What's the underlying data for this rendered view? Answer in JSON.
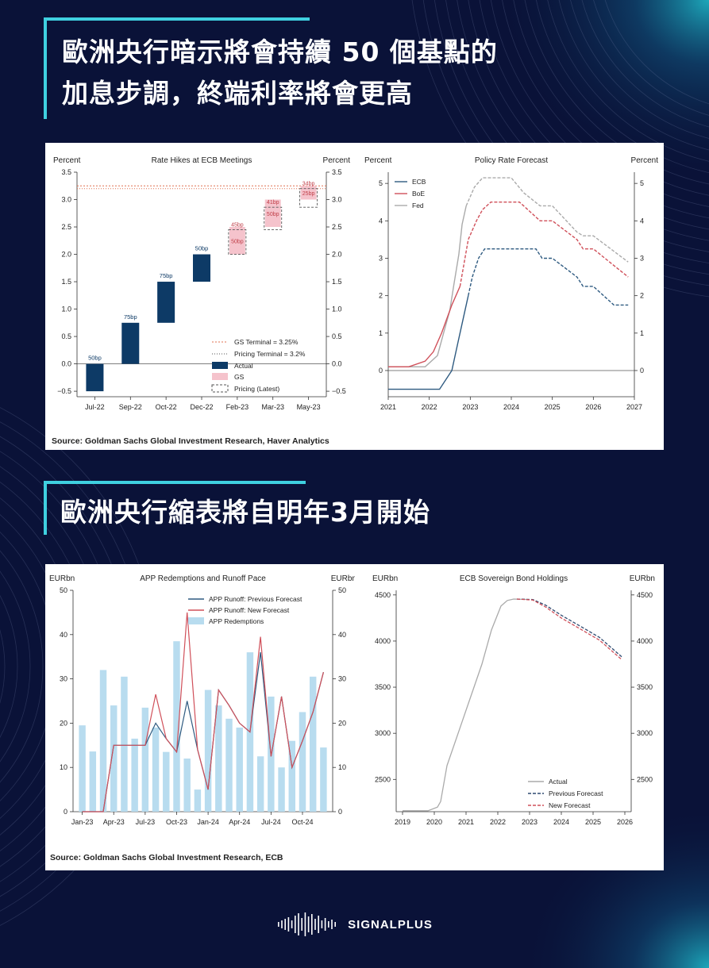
{
  "header": {
    "title_line1": "歐洲央行暗示將會持續 50 個基點的",
    "title_line2": "加息步調，終端利率將會更高",
    "section2_title": "歐洲央行縮表將自明年3月開始"
  },
  "panel1": {
    "source": "Source: Goldman Sachs Global Investment Research, Haver Analytics"
  },
  "panel2": {
    "source": "Source: Goldman Sachs Global Investment Research, ECB"
  },
  "brand": {
    "name": "SIGNALPLUS"
  },
  "chart_data": [
    {
      "type": "bar",
      "title": "Rate Hikes at ECB Meetings",
      "ylabel_left": "Percent",
      "ylabel_right": "Percent",
      "ylim": [
        -0.6,
        3.5
      ],
      "yticks": [
        "3.5",
        "3.0",
        "2.5",
        "2.0",
        "1.5",
        "1.0",
        "0.5",
        "0.0",
        "−0.5"
      ],
      "ytick_values": [
        3.5,
        3.0,
        2.5,
        2.0,
        1.5,
        1.0,
        0.5,
        0.0,
        -0.5
      ],
      "categories": [
        "Jul-22",
        "Sep-22",
        "Oct-22",
        "Dec-22",
        "Feb-23",
        "Mar-23",
        "May-23"
      ],
      "actual": [
        {
          "cat": 0,
          "from": -0.5,
          "to": 0.0,
          "label": "50bp"
        },
        {
          "cat": 1,
          "from": 0.0,
          "to": 0.75,
          "label": "75bp"
        },
        {
          "cat": 2,
          "from": 0.75,
          "to": 1.5,
          "label": "75bp"
        },
        {
          "cat": 3,
          "from": 1.5,
          "to": 2.0,
          "label": "50bp"
        }
      ],
      "gs": [
        {
          "cat": 4,
          "from": 2.0,
          "to": 2.5,
          "label": "50bp"
        },
        {
          "cat": 5,
          "from": 2.5,
          "to": 3.0,
          "label": "50bp"
        },
        {
          "cat": 6,
          "from": 3.0,
          "to": 3.25,
          "label": "25bp"
        }
      ],
      "pricing": [
        {
          "cat": 4,
          "from": 2.0,
          "to": 2.45,
          "label": "45bp"
        },
        {
          "cat": 5,
          "from": 2.45,
          "to": 2.86,
          "label": "41bp"
        },
        {
          "cat": 6,
          "from": 2.86,
          "to": 3.2,
          "label": "34bp"
        }
      ],
      "gs_terminal": 3.25,
      "pricing_terminal": 3.2,
      "legend": [
        "GS Terminal = 3.25%",
        "Pricing Terminal = 3.2%",
        "Actual",
        "GS",
        "Pricing (Latest)"
      ],
      "colors": {
        "actual": "#0d3a66",
        "gs": "#f5c3cc",
        "gs_line": "#e07050",
        "pricing": "#555555"
      }
    },
    {
      "type": "line",
      "title": "Policy Rate Forecast",
      "ylabel_left": "Percent",
      "ylabel_right": "Percent",
      "ylim": [
        -0.7,
        5.3
      ],
      "yticks": [
        "5",
        "4",
        "3",
        "2",
        "1",
        "0"
      ],
      "ytick_values": [
        5,
        4,
        3,
        2,
        1,
        0
      ],
      "xlim": [
        2021,
        2027
      ],
      "xticks": [
        "2021",
        "2022",
        "2023",
        "2024",
        "2025",
        "2026",
        "2027"
      ],
      "xtick_values": [
        2021,
        2022,
        2023,
        2024,
        2025,
        2026,
        2027
      ],
      "series": [
        {
          "name": "ECB",
          "color": "#2e5a80",
          "actual": [
            [
              2021,
              -0.5
            ],
            [
              2022.25,
              -0.5
            ],
            [
              2022.55,
              0.0
            ],
            [
              2022.7,
              0.75
            ],
            [
              2022.85,
              1.5
            ],
            [
              2022.95,
              2.0
            ]
          ],
          "forecast": [
            [
              2022.95,
              2.0
            ],
            [
              2023.05,
              2.5
            ],
            [
              2023.2,
              3.0
            ],
            [
              2023.35,
              3.25
            ],
            [
              2024.6,
              3.25
            ],
            [
              2024.75,
              3.0
            ],
            [
              2025.0,
              3.0
            ],
            [
              2025.6,
              2.5
            ],
            [
              2025.75,
              2.25
            ],
            [
              2026.0,
              2.25
            ],
            [
              2026.5,
              1.75
            ],
            [
              2026.85,
              1.75
            ]
          ]
        },
        {
          "name": "BoE",
          "color": "#d0505a",
          "actual": [
            [
              2021,
              0.1
            ],
            [
              2021.5,
              0.1
            ],
            [
              2021.9,
              0.25
            ],
            [
              2022.1,
              0.5
            ],
            [
              2022.3,
              1.0
            ],
            [
              2022.55,
              1.75
            ],
            [
              2022.75,
              2.25
            ]
          ],
          "forecast": [
            [
              2022.75,
              2.25
            ],
            [
              2022.95,
              3.5
            ],
            [
              2023.15,
              4.0
            ],
            [
              2023.3,
              4.3
            ],
            [
              2023.5,
              4.5
            ],
            [
              2024.2,
              4.5
            ],
            [
              2024.7,
              4.0
            ],
            [
              2025.0,
              4.0
            ],
            [
              2025.6,
              3.5
            ],
            [
              2025.75,
              3.25
            ],
            [
              2026.0,
              3.25
            ],
            [
              2026.85,
              2.5
            ]
          ]
        },
        {
          "name": "Fed",
          "color": "#aaaaaa",
          "actual": [
            [
              2021,
              0.1
            ],
            [
              2021.9,
              0.1
            ],
            [
              2022.2,
              0.4
            ],
            [
              2022.35,
              1.0
            ],
            [
              2022.5,
              1.6
            ],
            [
              2022.6,
              2.3
            ],
            [
              2022.72,
              3.1
            ],
            [
              2022.8,
              3.9
            ],
            [
              2022.9,
              4.4
            ]
          ],
          "forecast": [
            [
              2022.9,
              4.4
            ],
            [
              2023.1,
              4.9
            ],
            [
              2023.3,
              5.15
            ],
            [
              2024.0,
              5.15
            ],
            [
              2024.3,
              4.75
            ],
            [
              2024.7,
              4.4
            ],
            [
              2025.0,
              4.4
            ],
            [
              2025.6,
              3.7
            ],
            [
              2025.75,
              3.6
            ],
            [
              2026.0,
              3.6
            ],
            [
              2026.85,
              2.9
            ]
          ]
        }
      ]
    },
    {
      "type": "bar",
      "title": "APP Redemptions and Runoff Pace",
      "ylabel_left": "EURbn",
      "ylabel_right": "EURbn",
      "ylim": [
        0,
        50
      ],
      "yticks": [
        "50",
        "40",
        "30",
        "20",
        "10",
        "0"
      ],
      "ytick_values": [
        50,
        40,
        30,
        20,
        10,
        0
      ],
      "xticks": [
        "Jan-23",
        "Apr-23",
        "Jul-23",
        "Oct-23",
        "Jan-24",
        "Apr-24",
        "Jul-24",
        "Oct-24"
      ],
      "xtick_index": [
        0,
        3,
        6,
        9,
        12,
        15,
        18,
        21
      ],
      "redemptions": [
        19.5,
        13.6,
        32,
        24,
        30.5,
        16.5,
        23.5,
        19,
        13.5,
        38.5,
        12,
        5,
        27.5,
        24,
        21,
        19,
        36,
        12.5,
        26,
        10,
        16,
        22.5,
        30.5,
        14.5
      ],
      "series": [
        {
          "name": "APP Runoff: Previous Forecast",
          "color": "#2e5a80",
          "values": [
            0,
            0,
            0,
            15,
            15,
            15,
            15,
            20,
            16.5,
            13.5,
            25,
            14,
            5,
            27.5,
            24,
            20,
            18,
            36,
            12.5,
            26,
            10,
            16,
            22.5,
            31.5,
            14.5
          ]
        },
        {
          "name": "APP Runoff: New Forecast",
          "color": "#d0505a",
          "values": [
            0,
            0,
            0,
            15,
            15,
            15,
            15,
            26.5,
            16.5,
            13.5,
            45,
            14,
            5,
            27.5,
            24,
            20,
            18,
            39.5,
            12.5,
            26,
            10,
            16,
            22.5,
            31.5,
            14.5
          ]
        }
      ],
      "bar_name": "APP Redemptions",
      "bar_color": "#b8dcef"
    },
    {
      "type": "line",
      "title": "ECB Sovereign Bond Holdings",
      "ylabel_left": "EURbn",
      "ylabel_right": "EURbn",
      "ylim": [
        2150,
        4550
      ],
      "yticks": [
        "4500",
        "4000",
        "3500",
        "3000",
        "2500"
      ],
      "ytick_values": [
        4500,
        4000,
        3500,
        3000,
        2500
      ],
      "xlim": [
        2018.8,
        2026.2
      ],
      "xticks": [
        "2019",
        "2020",
        "2021",
        "2022",
        "2023",
        "2024",
        "2025",
        "2026"
      ],
      "xtick_values": [
        2019,
        2020,
        2021,
        2022,
        2023,
        2024,
        2025,
        2026
      ],
      "series": [
        {
          "name": "Actual",
          "color": "#aaaaaa",
          "values": [
            [
              2019,
              2160
            ],
            [
              2019.8,
              2160
            ],
            [
              2020.1,
              2200
            ],
            [
              2020.2,
              2260
            ],
            [
              2020.4,
              2650
            ],
            [
              2020.8,
              3050
            ],
            [
              2021.1,
              3350
            ],
            [
              2021.5,
              3750
            ],
            [
              2021.8,
              4120
            ],
            [
              2022.1,
              4380
            ],
            [
              2022.3,
              4440
            ],
            [
              2022.5,
              4455
            ],
            [
              2023.0,
              4450
            ]
          ]
        },
        {
          "name": "Previous Forecast",
          "color": "#2e4a70",
          "values": [
            [
              2022.6,
              4455
            ],
            [
              2023.1,
              4450
            ],
            [
              2023.5,
              4390
            ],
            [
              2024.0,
              4280
            ],
            [
              2024.6,
              4160
            ],
            [
              2025.2,
              4040
            ],
            [
              2025.9,
              3830
            ]
          ]
        },
        {
          "name": "New Forecast",
          "color": "#d0505a",
          "values": [
            [
              2022.6,
              4455
            ],
            [
              2023.1,
              4445
            ],
            [
              2023.5,
              4370
            ],
            [
              2024.0,
              4250
            ],
            [
              2024.6,
              4130
            ],
            [
              2025.2,
              4010
            ],
            [
              2025.9,
              3800
            ]
          ]
        }
      ]
    }
  ]
}
